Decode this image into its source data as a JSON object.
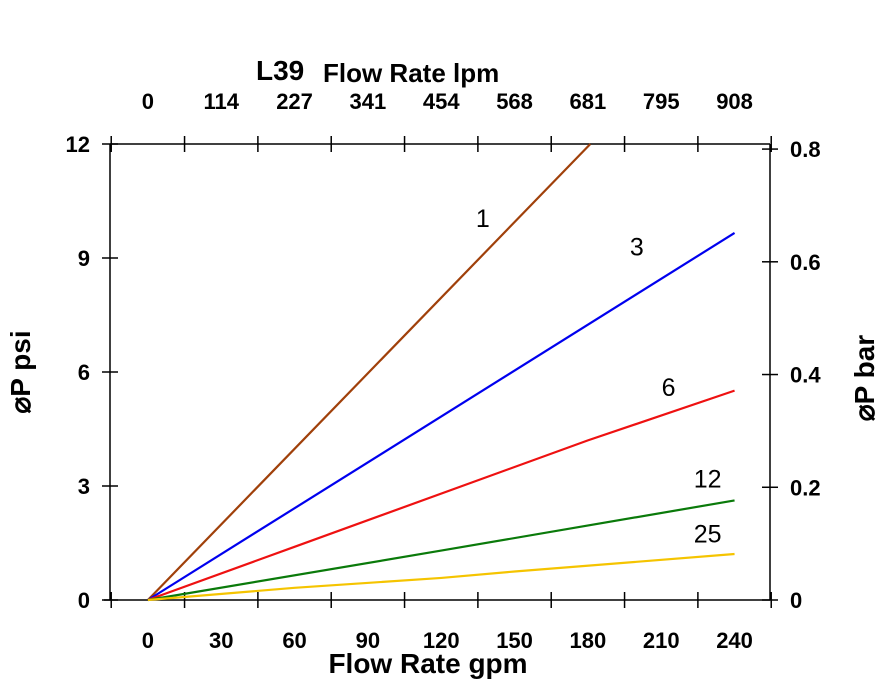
{
  "chart_data": {
    "type": "line",
    "title": "L39",
    "top_xlabel": "Flow Rate lpm",
    "xlabel": "Flow Rate gpm",
    "ylabel": "⌀P psi",
    "ylabel_right": "⌀P bar",
    "xlim": [
      -15.5,
      254.5
    ],
    "ylim": [
      0,
      12
    ],
    "ylim_right": [
      0,
      0.809
    ],
    "x_ticks": [
      0,
      30,
      60,
      90,
      120,
      150,
      180,
      210,
      240
    ],
    "x_tick_labels": [
      "0",
      "30",
      "60",
      "90",
      "120",
      "150",
      "180",
      "210",
      "240"
    ],
    "top_tick_labels": [
      "0",
      "114",
      "227",
      "341",
      "454",
      "568",
      "681",
      "795",
      "908"
    ],
    "y_ticks": [
      0,
      3,
      6,
      9,
      12
    ],
    "y_tick_labels": [
      "0",
      "3",
      "6",
      "9",
      "12"
    ],
    "y_right_ticks": [
      0,
      0.2,
      0.4,
      0.6,
      0.8
    ],
    "y_right_tick_labels": [
      "0",
      "0.2",
      "0.4",
      "0.6",
      "0.8"
    ],
    "grid": false,
    "series": [
      {
        "name": "1",
        "color": "#a0400a",
        "points": [
          [
            0,
            0
          ],
          [
            181,
            12
          ]
        ],
        "label_at": [
          137,
          10.05
        ]
      },
      {
        "name": "3",
        "color": "#0000ee",
        "points": [
          [
            0,
            0
          ],
          [
            240,
            9.66
          ]
        ],
        "label_at": [
          200,
          9.3
        ]
      },
      {
        "name": "6",
        "color": "#ee1111",
        "points": [
          [
            0,
            0
          ],
          [
            60,
            1.4
          ],
          [
            180,
            4.2
          ],
          [
            240,
            5.51
          ]
        ],
        "label_at": [
          213,
          5.6
        ]
      },
      {
        "name": "12",
        "color": "#0a7a0a",
        "points": [
          [
            0,
            0
          ],
          [
            120,
            1.3
          ],
          [
            240,
            2.62
          ]
        ],
        "label_at": [
          229,
          3.2
        ]
      },
      {
        "name": "25",
        "color": "#f5c400",
        "points": [
          [
            0,
            0
          ],
          [
            60,
            0.32
          ],
          [
            120,
            0.58
          ],
          [
            150,
            0.75
          ],
          [
            240,
            1.21
          ]
        ],
        "label_at": [
          229,
          1.75
        ]
      }
    ]
  }
}
